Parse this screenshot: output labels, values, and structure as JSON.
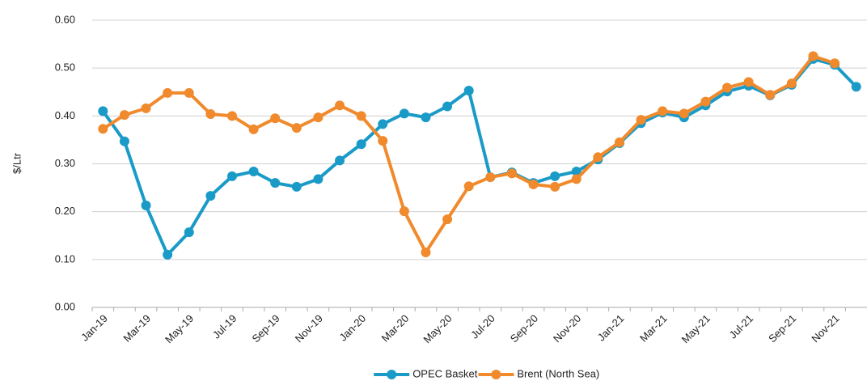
{
  "chart_data": {
    "type": "line",
    "y_label": "$/Ltr",
    "categories": [
      "Jan-19",
      null,
      "Mar-19",
      null,
      "May-19",
      null,
      "Jul-19",
      null,
      "Sep-19",
      null,
      "Nov-19",
      null,
      "Jan-20",
      null,
      "Mar-20",
      null,
      "May-20",
      null,
      "Jul-20",
      null,
      "Sep-20",
      null,
      "Nov-20",
      null,
      "Jan-21",
      null,
      "Mar-21",
      null,
      "May-21",
      null,
      "Jul-21",
      null,
      "Sep-21",
      null,
      "Nov-21",
      null
    ],
    "series": [
      {
        "name": "OPEC Basket",
        "color": "#1a9bc7",
        "values": [
          0.41,
          0.347,
          0.213,
          0.11,
          0.157,
          0.233,
          0.274,
          0.284,
          0.26,
          0.252,
          0.268,
          0.307,
          0.341,
          0.383,
          0.405,
          0.397,
          0.42,
          0.453,
          0.272,
          0.282,
          0.26,
          0.274,
          0.284,
          0.309,
          0.343,
          0.385,
          0.407,
          0.397,
          0.422,
          0.451,
          0.463,
          0.443,
          0.465,
          0.519,
          0.507,
          0.461
        ]
      },
      {
        "name": "Brent (North Sea)",
        "color": "#f08a2c",
        "values": [
          0.373,
          0.402,
          0.416,
          0.448,
          0.448,
          0.404,
          0.4,
          0.372,
          0.395,
          0.375,
          0.397,
          0.422,
          0.4,
          0.348,
          0.201,
          0.115,
          0.184,
          0.253,
          0.272,
          0.28,
          0.257,
          0.252,
          0.268,
          0.314,
          0.345,
          0.392,
          0.41,
          0.405,
          0.43,
          0.459,
          0.471,
          0.444,
          0.468,
          0.525,
          0.51,
          null
        ]
      }
    ],
    "ylim": [
      0,
      0.6
    ],
    "yticks": [
      {
        "value": 0,
        "label": "0.00"
      },
      {
        "value": 0.1,
        "label": "0.10"
      },
      {
        "value": 0.2,
        "label": "0.20"
      },
      {
        "value": 0.3,
        "label": "0.30"
      },
      {
        "value": 0.4,
        "label": "0.40"
      },
      {
        "value": 0.5,
        "label": "0.50"
      },
      {
        "value": 0.6,
        "label": "0.60"
      }
    ],
    "grid": true,
    "legend": "bottom"
  }
}
